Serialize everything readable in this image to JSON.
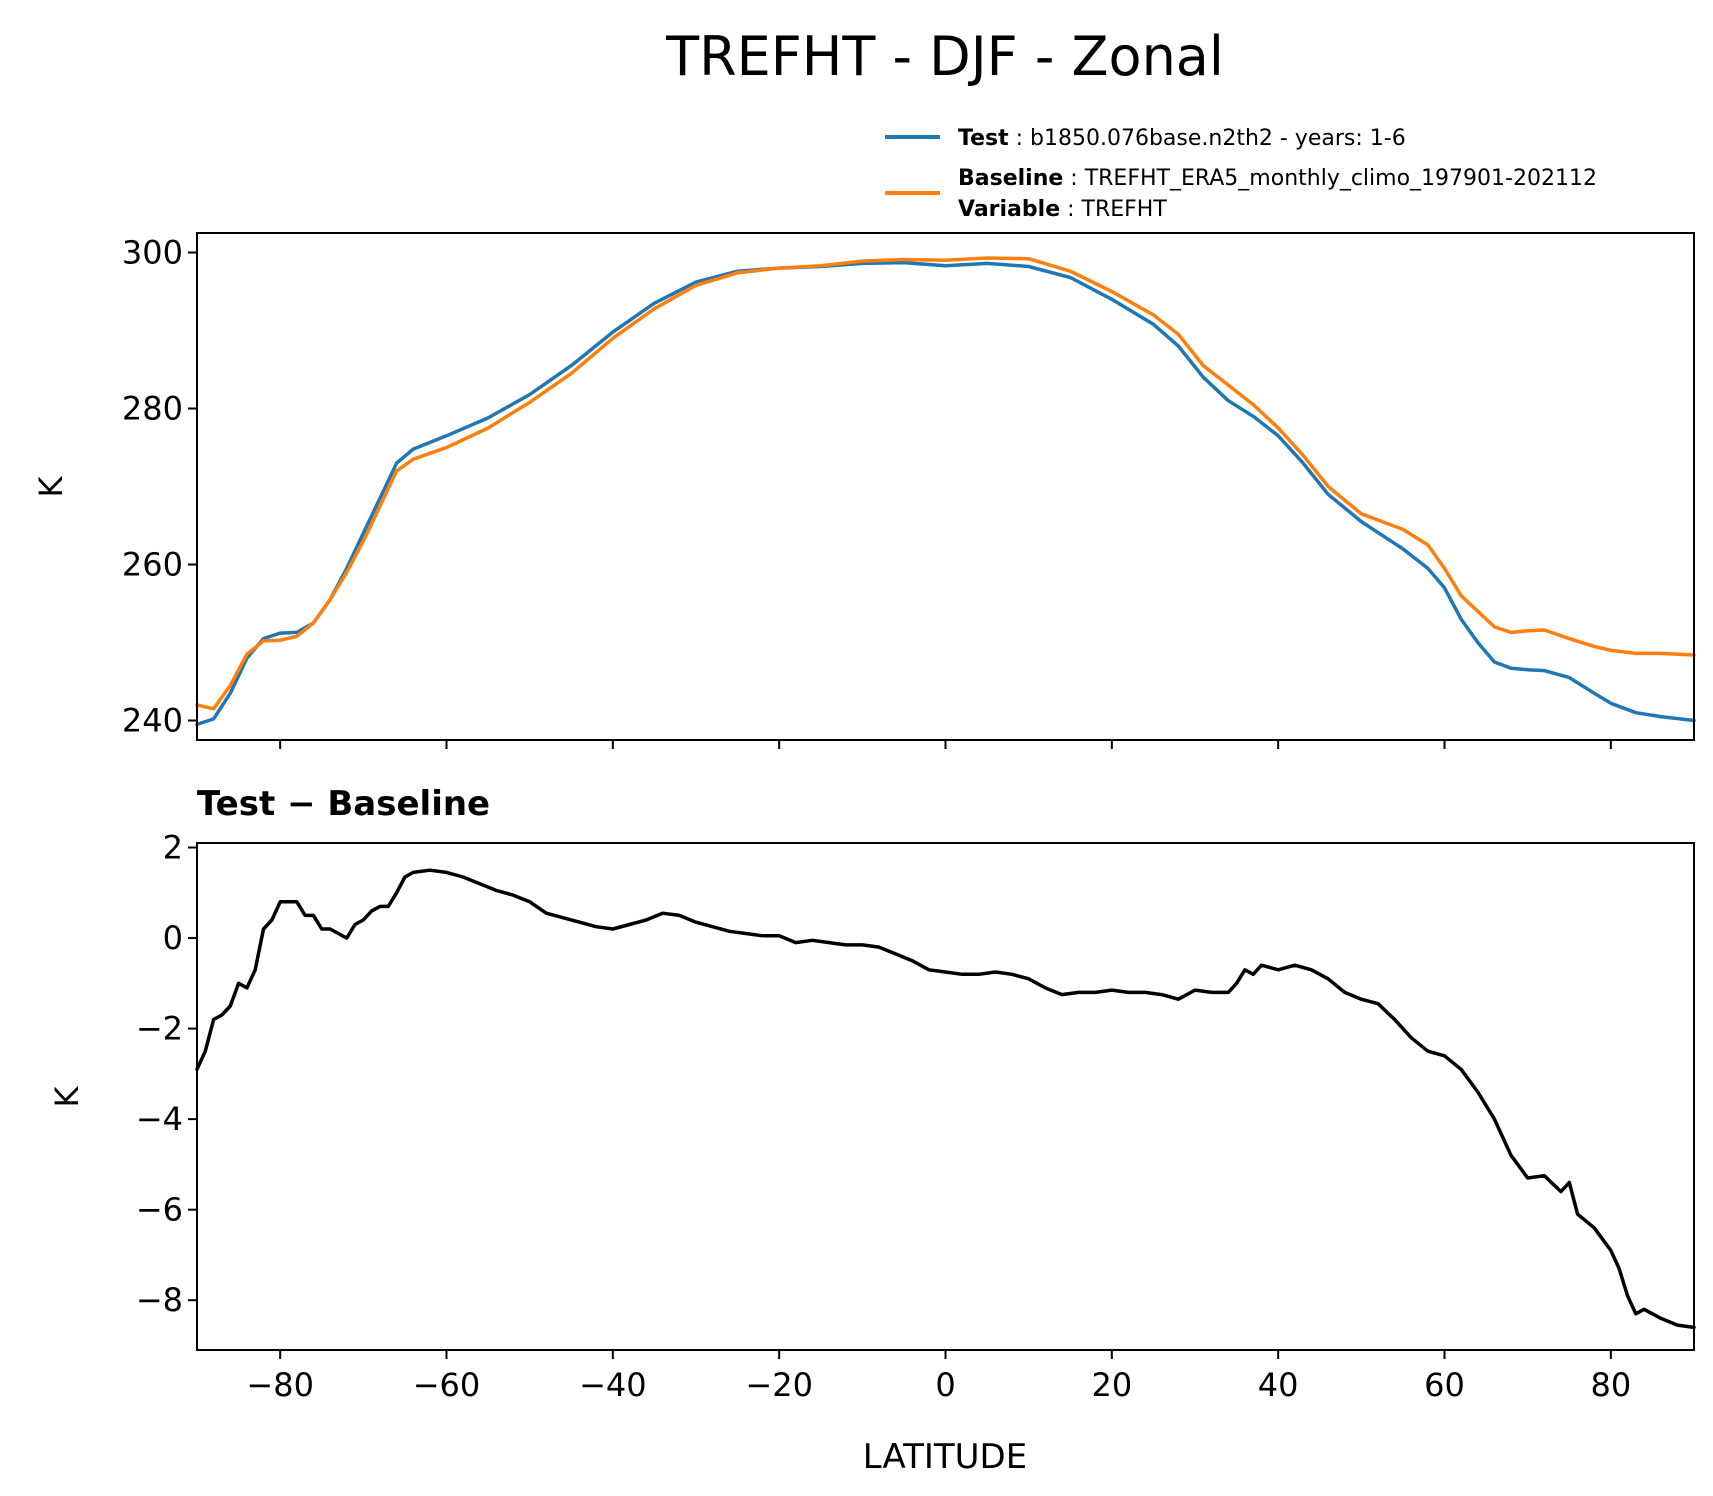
{
  "chart_data": {
    "type": "line",
    "title": "TREFHT - DJF - Zonal",
    "xlabel": "LATITUDE",
    "xlim": [
      -90,
      90
    ],
    "xticks": [
      -80,
      -60,
      -40,
      -20,
      0,
      20,
      40,
      60,
      80
    ],
    "xtick_labels": [
      "−80",
      "−60",
      "−40",
      "−20",
      "0",
      "20",
      "40",
      "60",
      "80"
    ],
    "legend": {
      "placement": "above top panel, right",
      "entries": [
        {
          "name_bold": "Test",
          "text": "b1850.076base.n2th2 - years: 1-6",
          "color": "#1f77b4"
        },
        {
          "name_bold": "Baseline",
          "text": "TREFHT_ERA5_monthly_climo_197901-202112",
          "color": "#ff7f0e"
        },
        {
          "name_bold": "Variable",
          "text": "TREFHT"
        }
      ]
    },
    "panels": [
      {
        "id": "top",
        "ylabel": "K",
        "ylim": [
          237.5,
          302.5
        ],
        "yticks": [
          240,
          260,
          280,
          300
        ],
        "ytick_labels": [
          "240",
          "260",
          "280",
          "300"
        ],
        "series": [
          {
            "key": "test",
            "color": "#1f77b4",
            "points": [
              [
                -90,
                239.5
              ],
              [
                -88,
                240.2
              ],
              [
                -86,
                243.5
              ],
              [
                -84,
                248
              ],
              [
                -82,
                250.5
              ],
              [
                -80,
                251.2
              ],
              [
                -78,
                251.3
              ],
              [
                -76,
                252.5
              ],
              [
                -74,
                255.5
              ],
              [
                -72,
                259.5
              ],
              [
                -70,
                264
              ],
              [
                -68,
                268.5
              ],
              [
                -66,
                273
              ],
              [
                -64,
                274.8
              ],
              [
                -60,
                276.5
              ],
              [
                -55,
                278.8
              ],
              [
                -50,
                281.8
              ],
              [
                -45,
                285.5
              ],
              [
                -40,
                289.8
              ],
              [
                -35,
                293.5
              ],
              [
                -30,
                296.2
              ],
              [
                -25,
                297.6
              ],
              [
                -20,
                298
              ],
              [
                -15,
                298.2
              ],
              [
                -10,
                298.6
              ],
              [
                -5,
                298.7
              ],
              [
                0,
                298.3
              ],
              [
                5,
                298.6
              ],
              [
                10,
                298.2
              ],
              [
                15,
                296.8
              ],
              [
                20,
                294
              ],
              [
                25,
                290.8
              ],
              [
                28,
                288
              ],
              [
                31,
                284
              ],
              [
                34,
                281
              ],
              [
                37,
                279
              ],
              [
                40,
                276.5
              ],
              [
                43,
                273
              ],
              [
                46,
                269
              ],
              [
                50,
                265.5
              ],
              [
                55,
                262
              ],
              [
                58,
                259.5
              ],
              [
                60,
                257
              ],
              [
                62,
                253
              ],
              [
                64,
                250
              ],
              [
                66,
                247.5
              ],
              [
                68,
                246.7
              ],
              [
                70,
                246.5
              ],
              [
                72,
                246.4
              ],
              [
                75,
                245.5
              ],
              [
                78,
                243.5
              ],
              [
                80,
                242.2
              ],
              [
                83,
                241
              ],
              [
                86,
                240.5
              ],
              [
                90,
                240
              ]
            ]
          },
          {
            "key": "baseline",
            "color": "#ff7f0e",
            "points": [
              [
                -90,
                242
              ],
              [
                -88,
                241.5
              ],
              [
                -86,
                244.5
              ],
              [
                -84,
                248.5
              ],
              [
                -82,
                250.2
              ],
              [
                -80,
                250.3
              ],
              [
                -78,
                250.8
              ],
              [
                -76,
                252.5
              ],
              [
                -74,
                255.5
              ],
              [
                -72,
                259
              ],
              [
                -70,
                263
              ],
              [
                -68,
                267.5
              ],
              [
                -66,
                272
              ],
              [
                -64,
                273.5
              ],
              [
                -60,
                275
              ],
              [
                -55,
                277.5
              ],
              [
                -50,
                280.8
              ],
              [
                -45,
                284.5
              ],
              [
                -40,
                289
              ],
              [
                -35,
                292.8
              ],
              [
                -30,
                295.8
              ],
              [
                -25,
                297.4
              ],
              [
                -20,
                298
              ],
              [
                -15,
                298.3
              ],
              [
                -10,
                298.9
              ],
              [
                -5,
                299.1
              ],
              [
                0,
                299
              ],
              [
                5,
                299.3
              ],
              [
                10,
                299.2
              ],
              [
                15,
                297.6
              ],
              [
                20,
                295
              ],
              [
                25,
                292
              ],
              [
                28,
                289.5
              ],
              [
                31,
                285.5
              ],
              [
                34,
                283
              ],
              [
                37,
                280.5
              ],
              [
                40,
                277.5
              ],
              [
                43,
                274
              ],
              [
                46,
                270
              ],
              [
                50,
                266.5
              ],
              [
                55,
                264.5
              ],
              [
                58,
                262.5
              ],
              [
                60,
                259.5
              ],
              [
                62,
                256
              ],
              [
                64,
                254
              ],
              [
                66,
                252
              ],
              [
                68,
                251.3
              ],
              [
                70,
                251.5
              ],
              [
                72,
                251.6
              ],
              [
                75,
                250.5
              ],
              [
                78,
                249.5
              ],
              [
                80,
                249
              ],
              [
                83,
                248.6
              ],
              [
                86,
                248.6
              ],
              [
                90,
                248.4
              ]
            ]
          }
        ]
      },
      {
        "id": "bottom",
        "title": "Test − Baseline",
        "ylabel": "K",
        "ylim": [
          -9.1,
          2.1
        ],
        "yticks": [
          -8,
          -6,
          -4,
          -2,
          0,
          2
        ],
        "ytick_labels": [
          "−8",
          "−6",
          "−4",
          "−2",
          "0",
          "2"
        ],
        "series": [
          {
            "key": "difference",
            "color": "#000000",
            "points": [
              [
                -90,
                -2.9
              ],
              [
                -89,
                -2.5
              ],
              [
                -88,
                -1.8
              ],
              [
                -87,
                -1.7
              ],
              [
                -86,
                -1.5
              ],
              [
                -85,
                -1
              ],
              [
                -84,
                -1.1
              ],
              [
                -83,
                -0.7
              ],
              [
                -82,
                0.2
              ],
              [
                -81,
                0.4
              ],
              [
                -80,
                0.8
              ],
              [
                -79,
                0.8
              ],
              [
                -78,
                0.8
              ],
              [
                -77,
                0.5
              ],
              [
                -76,
                0.5
              ],
              [
                -75,
                0.2
              ],
              [
                -74,
                0.2
              ],
              [
                -73,
                0.1
              ],
              [
                -72,
                0
              ],
              [
                -71,
                0.3
              ],
              [
                -70,
                0.4
              ],
              [
                -69,
                0.6
              ],
              [
                -68,
                0.7
              ],
              [
                -67,
                0.7
              ],
              [
                -66,
                1
              ],
              [
                -65,
                1.35
              ],
              [
                -64,
                1.45
              ],
              [
                -62,
                1.5
              ],
              [
                -60,
                1.45
              ],
              [
                -58,
                1.35
              ],
              [
                -56,
                1.2
              ],
              [
                -54,
                1.05
              ],
              [
                -52,
                0.95
              ],
              [
                -50,
                0.8
              ],
              [
                -48,
                0.55
              ],
              [
                -46,
                0.45
              ],
              [
                -44,
                0.35
              ],
              [
                -42,
                0.25
              ],
              [
                -40,
                0.2
              ],
              [
                -38,
                0.3
              ],
              [
                -36,
                0.4
              ],
              [
                -34,
                0.55
              ],
              [
                -32,
                0.5
              ],
              [
                -30,
                0.35
              ],
              [
                -28,
                0.25
              ],
              [
                -26,
                0.15
              ],
              [
                -24,
                0.1
              ],
              [
                -22,
                0.05
              ],
              [
                -20,
                0.05
              ],
              [
                -18,
                -0.1
              ],
              [
                -16,
                -0.05
              ],
              [
                -14,
                -0.1
              ],
              [
                -12,
                -0.15
              ],
              [
                -10,
                -0.15
              ],
              [
                -8,
                -0.2
              ],
              [
                -6,
                -0.35
              ],
              [
                -4,
                -0.5
              ],
              [
                -2,
                -0.7
              ],
              [
                0,
                -0.75
              ],
              [
                2,
                -0.8
              ],
              [
                4,
                -0.8
              ],
              [
                6,
                -0.75
              ],
              [
                8,
                -0.8
              ],
              [
                10,
                -0.9
              ],
              [
                12,
                -1.1
              ],
              [
                14,
                -1.25
              ],
              [
                16,
                -1.2
              ],
              [
                18,
                -1.2
              ],
              [
                20,
                -1.15
              ],
              [
                22,
                -1.2
              ],
              [
                24,
                -1.2
              ],
              [
                26,
                -1.25
              ],
              [
                28,
                -1.35
              ],
              [
                30,
                -1.15
              ],
              [
                32,
                -1.2
              ],
              [
                34,
                -1.2
              ],
              [
                35,
                -1
              ],
              [
                36,
                -0.7
              ],
              [
                37,
                -0.8
              ],
              [
                38,
                -0.6
              ],
              [
                40,
                -0.7
              ],
              [
                42,
                -0.6
              ],
              [
                44,
                -0.7
              ],
              [
                46,
                -0.9
              ],
              [
                48,
                -1.2
              ],
              [
                50,
                -1.35
              ],
              [
                52,
                -1.45
              ],
              [
                54,
                -1.8
              ],
              [
                56,
                -2.2
              ],
              [
                58,
                -2.5
              ],
              [
                60,
                -2.6
              ],
              [
                62,
                -2.9
              ],
              [
                64,
                -3.4
              ],
              [
                66,
                -4
              ],
              [
                68,
                -4.8
              ],
              [
                70,
                -5.3
              ],
              [
                72,
                -5.25
              ],
              [
                74,
                -5.6
              ],
              [
                75,
                -5.4
              ],
              [
                76,
                -6.1
              ],
              [
                78,
                -6.4
              ],
              [
                80,
                -6.9
              ],
              [
                81,
                -7.3
              ],
              [
                82,
                -7.9
              ],
              [
                83,
                -8.3
              ],
              [
                84,
                -8.2
              ],
              [
                86,
                -8.4
              ],
              [
                88,
                -8.55
              ],
              [
                90,
                -8.6
              ]
            ]
          }
        ]
      }
    ]
  }
}
